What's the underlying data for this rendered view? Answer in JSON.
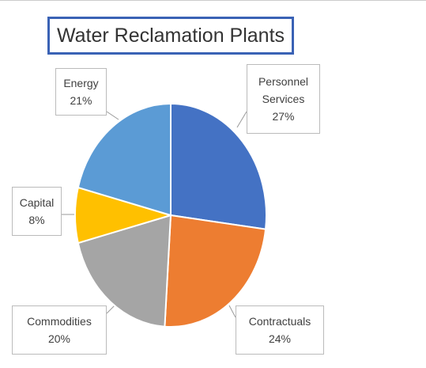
{
  "chart_data": {
    "type": "pie",
    "title": "Water Reclamation Plants",
    "categories": [
      "Personnel Services",
      "Contractuals",
      "Commodities",
      "Capital",
      "Energy"
    ],
    "values": [
      27,
      24,
      20,
      8,
      21
    ],
    "value_labels": [
      "27%",
      "24%",
      "20%",
      "8%",
      "21%"
    ],
    "colors": [
      "#4472c4",
      "#ed7d31",
      "#a5a5a5",
      "#ffc000",
      "#5b9bd5"
    ]
  }
}
